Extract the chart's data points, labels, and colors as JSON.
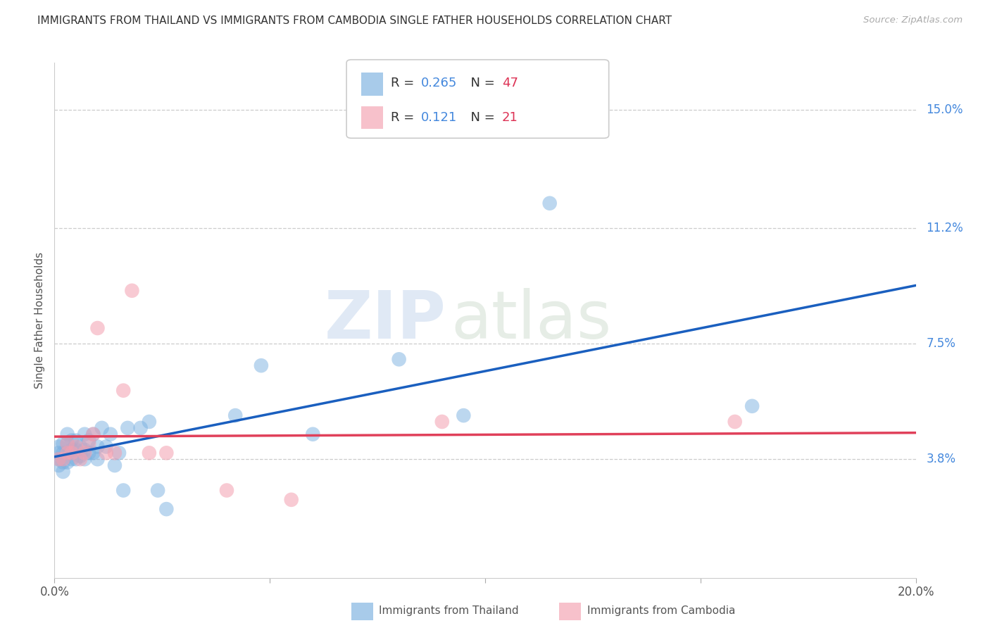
{
  "title": "IMMIGRANTS FROM THAILAND VS IMMIGRANTS FROM CAMBODIA SINGLE FATHER HOUSEHOLDS CORRELATION CHART",
  "source": "Source: ZipAtlas.com",
  "ylabel": "Single Father Households",
  "xlim": [
    0.0,
    0.2
  ],
  "ylim": [
    0.0,
    0.165
  ],
  "yticks": [
    0.038,
    0.075,
    0.112,
    0.15
  ],
  "ytick_labels": [
    "3.8%",
    "7.5%",
    "11.2%",
    "15.0%"
  ],
  "xticks": [
    0.0,
    0.05,
    0.1,
    0.15,
    0.2
  ],
  "xtick_labels": [
    "0.0%",
    "",
    "",
    "",
    "20.0%"
  ],
  "thailand_R": 0.265,
  "thailand_N": 47,
  "cambodia_R": 0.121,
  "cambodia_N": 21,
  "thailand_color": "#7ab0e0",
  "cambodia_color": "#f4a0b0",
  "trend_thailand_color": "#1a5fbf",
  "trend_cambodia_color": "#e0405a",
  "watermark_zip": "ZIP",
  "watermark_atlas": "atlas",
  "thailand_x": [
    0.001,
    0.001,
    0.001,
    0.001,
    0.002,
    0.002,
    0.002,
    0.002,
    0.003,
    0.003,
    0.003,
    0.003,
    0.004,
    0.004,
    0.004,
    0.005,
    0.005,
    0.005,
    0.006,
    0.006,
    0.007,
    0.007,
    0.007,
    0.008,
    0.008,
    0.009,
    0.009,
    0.01,
    0.01,
    0.011,
    0.012,
    0.013,
    0.014,
    0.015,
    0.016,
    0.017,
    0.02,
    0.022,
    0.024,
    0.026,
    0.042,
    0.048,
    0.06,
    0.08,
    0.095,
    0.162,
    0.115
  ],
  "thailand_y": [
    0.036,
    0.038,
    0.04,
    0.042,
    0.034,
    0.037,
    0.04,
    0.043,
    0.037,
    0.04,
    0.043,
    0.046,
    0.038,
    0.041,
    0.044,
    0.038,
    0.041,
    0.044,
    0.039,
    0.042,
    0.038,
    0.041,
    0.046,
    0.04,
    0.044,
    0.04,
    0.046,
    0.038,
    0.042,
    0.048,
    0.042,
    0.046,
    0.036,
    0.04,
    0.028,
    0.048,
    0.048,
    0.05,
    0.028,
    0.022,
    0.052,
    0.068,
    0.046,
    0.07,
    0.052,
    0.055,
    0.12
  ],
  "cambodia_x": [
    0.001,
    0.002,
    0.003,
    0.003,
    0.004,
    0.005,
    0.006,
    0.007,
    0.008,
    0.009,
    0.01,
    0.012,
    0.014,
    0.016,
    0.018,
    0.022,
    0.026,
    0.04,
    0.055,
    0.09,
    0.158
  ],
  "cambodia_y": [
    0.038,
    0.038,
    0.04,
    0.043,
    0.04,
    0.042,
    0.038,
    0.04,
    0.043,
    0.046,
    0.08,
    0.04,
    0.04,
    0.06,
    0.092,
    0.04,
    0.04,
    0.028,
    0.025,
    0.05,
    0.05
  ]
}
